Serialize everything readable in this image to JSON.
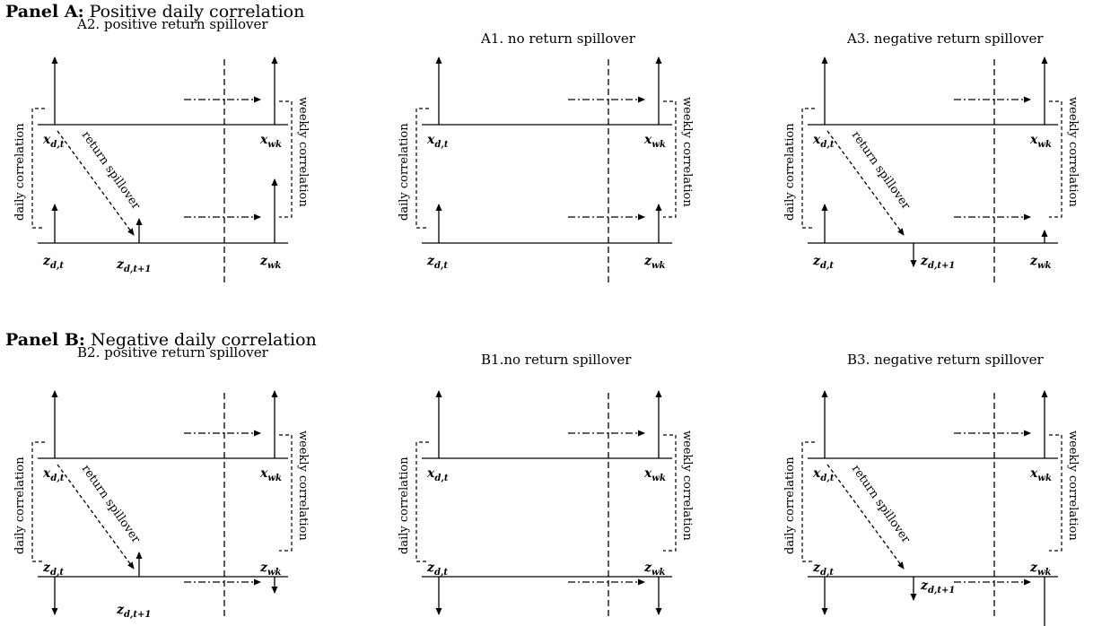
{
  "panel_a": {
    "label": "Panel A:",
    "title": "Positive daily correlation",
    "subpanels": [
      {
        "id": "A2",
        "title": "A2. positive return spillover",
        "spillover": "positive"
      },
      {
        "id": "A1",
        "title": "A1. no return spillover",
        "spillover": "none"
      },
      {
        "id": "A3",
        "title": "A3. negative return spillover",
        "spillover": "negative"
      }
    ]
  },
  "panel_b": {
    "label": "Panel B:",
    "title": "Negative daily correlation",
    "subpanels": [
      {
        "id": "B2",
        "title": "B2. positive return spillover",
        "spillover": "positive"
      },
      {
        "id": "B1",
        "title": "B1.no return spillover",
        "spillover": "none"
      },
      {
        "id": "B3",
        "title": "B3. negative return spillover",
        "spillover": "negative"
      }
    ]
  },
  "labels": {
    "daily_correlation": "daily correlation",
    "weekly_correlation": "weekly correlation",
    "return_spillover": "return spillover",
    "x_dt_base": "x",
    "x_dt_sub": "d,t",
    "x_wk_base": "x",
    "x_wk_sub": "wk",
    "z_dt_base": "z",
    "z_dt_sub": "d,t",
    "z_dt1_sub": "d,t+1",
    "z_wk_base": "z",
    "z_wk_sub": "wk"
  }
}
